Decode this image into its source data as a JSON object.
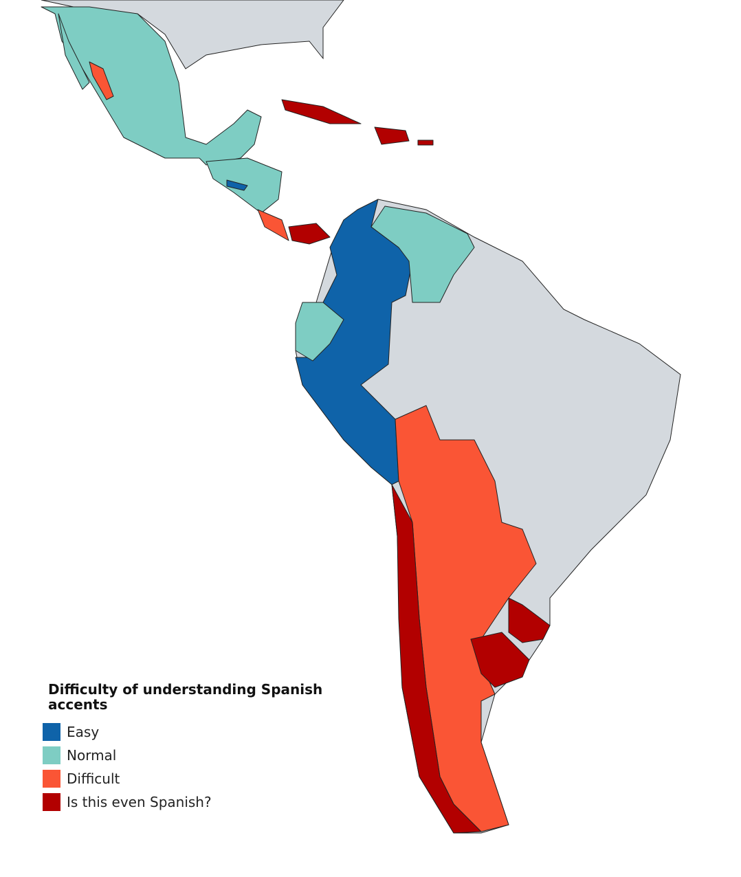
{
  "legend": {
    "title": "Difficulty of understanding Spanish accents",
    "items": [
      {
        "label": "Easy",
        "color": "#0f63a9"
      },
      {
        "label": "Normal",
        "color": "#7ecdc3"
      },
      {
        "label": "Difficult",
        "color": "#fa5535"
      },
      {
        "label": "Is this even Spanish?",
        "color": "#b20000"
      }
    ]
  }
}
